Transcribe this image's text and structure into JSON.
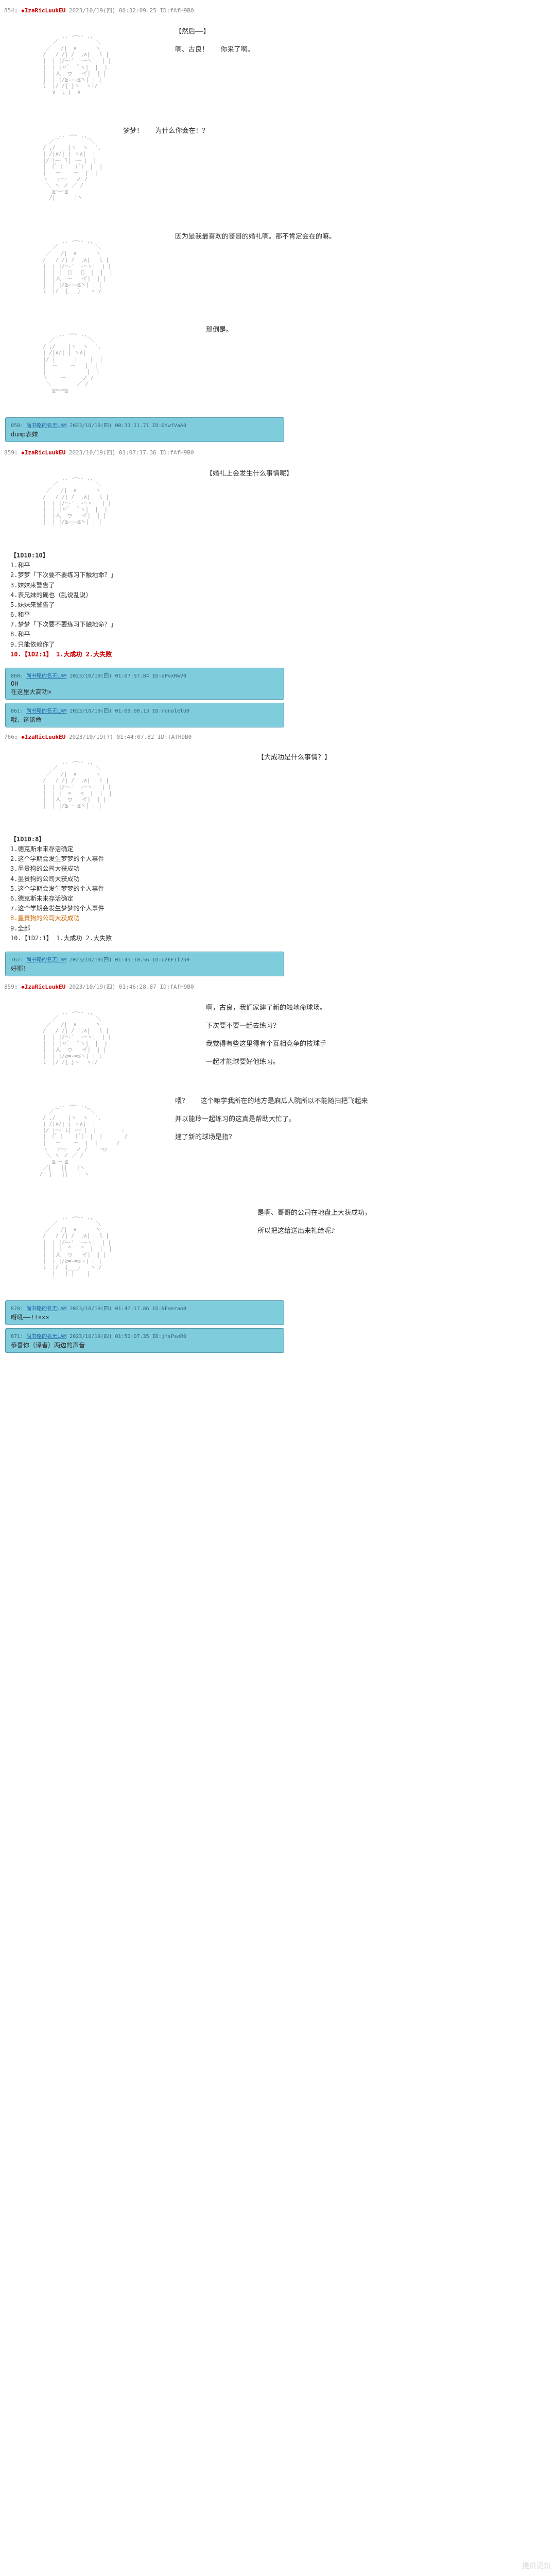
{
  "posts": [
    {
      "header": {
        "num": "854",
        "name": "◆IzaRicLuukEU",
        "date": "2023/10/19(四) 00:32:09.25",
        "id": "ID:fAfH9B0"
      },
      "dialogue": [
        {
          "text": "【然后——】",
          "indent": "indent-1"
        },
        {
          "text": "啊、古良！   你来了啊。",
          "indent": "indent-1"
        }
      ]
    },
    {
      "dialogue": [
        {
          "text": "梦梦！   为什么你会在！？",
          "indent": "indent-2"
        }
      ]
    },
    {
      "dialogue": [
        {
          "text": "因为是我最喜欢的哥哥的婚礼啊。那不肯定会在的嘛。",
          "indent": "indent-1"
        }
      ]
    },
    {
      "dialogue": [
        {
          "text": "那倒是。",
          "indent": "indent-3"
        }
      ]
    }
  ],
  "comments1": [
    {
      "meta_num": "858",
      "meta_name": "尚书略的名无LAM",
      "meta_date": "2023/10/19(四) 00:33:11.71",
      "meta_id": "ID:GYwfVaA0",
      "body": "dump表妹"
    }
  ],
  "post2_header": {
    "num": "859",
    "name": "◆IzaRicLuukEU",
    "date": "2023/10/19(四) 01:07:17.36",
    "id": "ID:fAfH9B0"
  },
  "post2_dialogue": {
    "text": "【婚礼上会发生什么事情呢】",
    "indent": "indent-3"
  },
  "dice1": {
    "title": "【1D10:10】",
    "items": [
      "1.和平",
      "2.梦梦「下次要不要练习下触地命？」",
      "3.妹妹来警告了",
      "4.表兄妹的确也（乱说乱说）",
      "5.妹妹来警告了",
      "6.和平",
      "7.梦梦「下次要不要练习下触地命？」",
      "8.和平",
      "9.只能依赖你了"
    ],
    "special": "10.【1D2:1】   1.大成功   2.大失败"
  },
  "comments2": [
    {
      "meta_num": "860",
      "meta_name": "尚书略的名无LAM",
      "meta_date": "2023/10/19(四) 01:07:57.84",
      "meta_id": "ID:dPvxRwV0",
      "body": "OH\n在这里大高功×"
    },
    {
      "meta_num": "861",
      "meta_name": "尚书略的名无LAM",
      "meta_date": "2023/10/19(四) 01:09:08.13",
      "meta_id": "ID:ronalelU0",
      "body": "哦、这该命"
    }
  ],
  "post3_header": {
    "num": "766",
    "name": "◆IzaRicLuukEU",
    "date": "2023/10/19(?) 01:44:07.82",
    "id": "ID:fAfH9B0"
  },
  "post3_dialogue": {
    "text": "【大成功是什么事情？】",
    "indent": "indent-4"
  },
  "dice2": {
    "title": "【1D10:8】",
    "items": [
      "1.德克斯未来存活确定",
      "2.这个学期会发生梦梦的个人事件",
      "3.墨贵狗的公司大获成功",
      "4.墨贵狗的公司大获成功",
      "5.这个学期会发生梦梦的个人事件",
      "6.德克斯未来存活确定",
      "7.这个学期会发生梦梦的个人事件"
    ],
    "highlight": "8.墨贵狗的公司大获成功",
    "after": [
      "9.全部",
      "10.【1D2:1】 1.大成功   2.大失败"
    ]
  },
  "comments3": [
    {
      "meta_num": "767",
      "meta_name": "尚书略的名无LAM",
      "meta_date": "2023/10/19(四) 01:45:10.56",
      "meta_id": "ID:uzEFIl2o0",
      "body": "好耶！"
    }
  ],
  "post4_header": {
    "num": "859",
    "name": "◆IzaRicLuukEU",
    "date": "2023/10/19(四) 01:46:28.87",
    "id": "ID:fAfH9B0"
  },
  "post4_dialogue": [
    {
      "text": "啊，古良，我们家建了新的触地命球场。",
      "indent": "indent-3"
    },
    {
      "text": "下次要不要一起去练习？",
      "indent": "indent-3"
    },
    {
      "text": "我觉得有些这里得有个互相竞争的技球手",
      "indent": "indent-3"
    },
    {
      "text": "一起才能球要好他练习。",
      "indent": "indent-3"
    }
  ],
  "post5_dialogue": [
    {
      "text": "喂？   这个嘛学我所在的地方是麻瓜人院所以不能随扫把飞起来",
      "indent": "indent-1"
    },
    {
      "text": "并以能玲一起练习的这真是帮助大忙了。",
      "indent": "indent-1"
    },
    {
      "text": "建了新的球场是指？",
      "indent": "indent-1"
    }
  ],
  "post6_dialogue": [
    {
      "text": "是啊、哥哥的公司在地盘上大获成功，",
      "indent": "indent-4"
    },
    {
      "text": "所以把这给送出来礼给呢♪",
      "indent": "indent-4"
    }
  ],
  "comments4": [
    {
      "meta_num": "870",
      "meta_name": "尚书略的名无LAM",
      "meta_date": "2023/10/19(四) 01:47:17.86",
      "meta_id": "ID:NFaerao0",
      "body": "呀吼——!!×××"
    },
    {
      "meta_num": "871",
      "meta_name": "尚书略的名无LAM",
      "meta_date": "2023/10/19(四) 01:50:07.35",
      "meta_id": "ID:jfsPseR0",
      "body": "恭喜你（译者）两边的声音"
    }
  ],
  "watermark": "提供更新"
}
